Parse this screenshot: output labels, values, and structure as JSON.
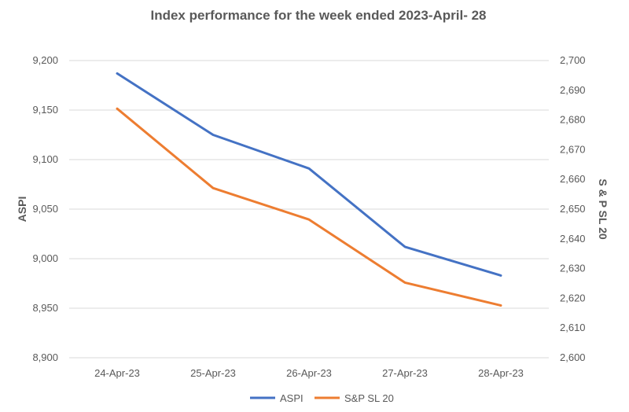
{
  "chart_data": {
    "type": "line",
    "title": "Index performance for the week ended 2023-April- 28",
    "categories": [
      "24-Apr-23",
      "25-Apr-23",
      "26-Apr-23",
      "27-Apr-23",
      "28-Apr-23"
    ],
    "series": [
      {
        "name": "ASPI",
        "axis": "left",
        "color": "#4472c4",
        "values": [
          9187,
          9125,
          9091,
          9012,
          8983
        ]
      },
      {
        "name": "S&P SL 20",
        "axis": "right",
        "color": "#ed7d31",
        "values": [
          2683.8,
          2657.1,
          2646.5,
          2625.3,
          2617.6
        ]
      }
    ],
    "ylabel": "ASPI",
    "y2label": "S & P SL 20",
    "ylim": [
      8900,
      9200
    ],
    "y2lim": [
      2600,
      2700
    ],
    "yticks": [
      "8,900",
      "8,950",
      "9,000",
      "9,050",
      "9,100",
      "9,150",
      "9,200"
    ],
    "y2ticks": [
      "2,600",
      "2,610",
      "2,620",
      "2,630",
      "2,640",
      "2,650",
      "2,660",
      "2,670",
      "2,680",
      "2,690",
      "2,700"
    ],
    "grid": true,
    "legend_position": "bottom"
  }
}
